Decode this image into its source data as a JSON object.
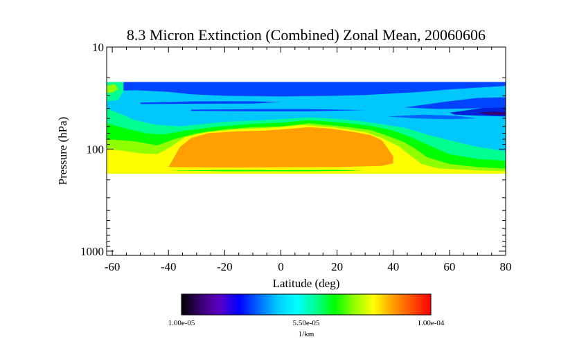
{
  "chart_data": {
    "type": "heatmap",
    "title": "8.3 Micron Extinction (Combined) Zonal Mean, 20060606",
    "xlabel": "Latitude (deg)",
    "ylabel": "Pressure (hPa)",
    "xlim": [
      -62,
      80
    ],
    "ylim": [
      10,
      1100
    ],
    "yscale": "log",
    "x_ticks": [
      {
        "value": -60,
        "label": "-60"
      },
      {
        "value": -40,
        "label": "-40"
      },
      {
        "value": -20,
        "label": "-20"
      },
      {
        "value": 0,
        "label": "0"
      },
      {
        "value": 20,
        "label": "20"
      },
      {
        "value": 40,
        "label": "40"
      },
      {
        "value": 60,
        "label": "60"
      },
      {
        "value": 80,
        "label": "80"
      }
    ],
    "y_ticks": [
      {
        "value": 10,
        "label": "10"
      },
      {
        "value": 100,
        "label": "100"
      },
      {
        "value": 1000,
        "label": "1000"
      }
    ],
    "data_extent": {
      "lat": [
        -62,
        80
      ],
      "pressure": [
        22,
        174
      ]
    },
    "colorbar": {
      "min_label": "1.00e-05",
      "mid_label": "5.50e-05",
      "max_label": "1.00e-04",
      "units": "1/km",
      "colors": [
        "#000000",
        "#3a0070",
        "#5a00c8",
        "#0000ff",
        "#0066ff",
        "#00c8ff",
        "#00ffff",
        "#00ff90",
        "#00ff00",
        "#90ff00",
        "#ffff00",
        "#ffa000",
        "#ff5000",
        "#ff0000"
      ]
    },
    "regions": [
      {
        "name": "upper-band",
        "color": "#0044ff",
        "pressure_top": 22,
        "pressure_bottom": 30,
        "lat": [
          -62,
          80
        ]
      },
      {
        "name": "cyan-layer",
        "color": "#00c8ff",
        "pressure_top": 30,
        "pressure_bottom": 70,
        "lat": [
          -62,
          80
        ]
      },
      {
        "name": "tropical-core",
        "color": "#ffa000",
        "pressure_top": 60,
        "pressure_bottom": 150,
        "lat": [
          -40,
          40
        ]
      },
      {
        "name": "tropopause-green",
        "color": "#00ff00",
        "pressure_top": 55,
        "pressure_bottom": 174,
        "lat": [
          -62,
          80
        ]
      },
      {
        "name": "lower-yellow",
        "color": "#ffff00",
        "pressure_top": 150,
        "pressure_bottom": 174,
        "lat": [
          -62,
          80
        ]
      }
    ]
  }
}
